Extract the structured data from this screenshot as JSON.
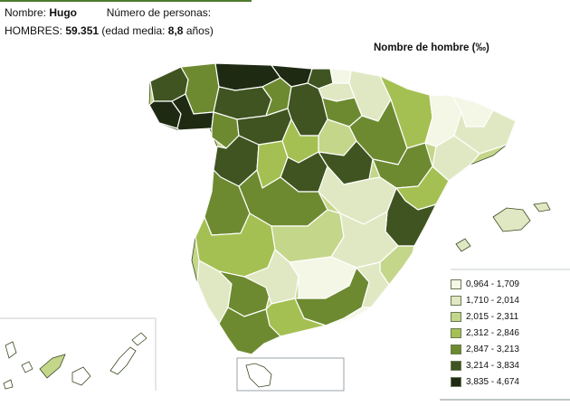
{
  "header": {
    "name_label": "Nombre:",
    "name_value": "Hugo",
    "count_label": "Número de personas:",
    "men_label": "HOMBRES:",
    "men_value": "59.351",
    "age_prefix": "(edad media:",
    "age_value": "8,8",
    "age_suffix": "años)"
  },
  "map": {
    "title": "Nombre de hombre (‰)",
    "legend": [
      {
        "label": "0,964 - 1,709",
        "color": "#f4f6e6"
      },
      {
        "label": "1,710 - 2,014",
        "color": "#e0e8c3"
      },
      {
        "label": "2,015 - 2,311",
        "color": "#c4d68a"
      },
      {
        "label": "2,312 - 2,846",
        "color": "#a5c052"
      },
      {
        "label": "2,847 - 3,213",
        "color": "#6d8a30"
      },
      {
        "label": "3,214 - 3,834",
        "color": "#3f5420"
      },
      {
        "label": "3,835 - 4,674",
        "color": "#1e2a12"
      }
    ],
    "colors": {
      "border": "#ffffff",
      "outline": "#3a4a22",
      "accent": "#4f7a2c"
    }
  }
}
